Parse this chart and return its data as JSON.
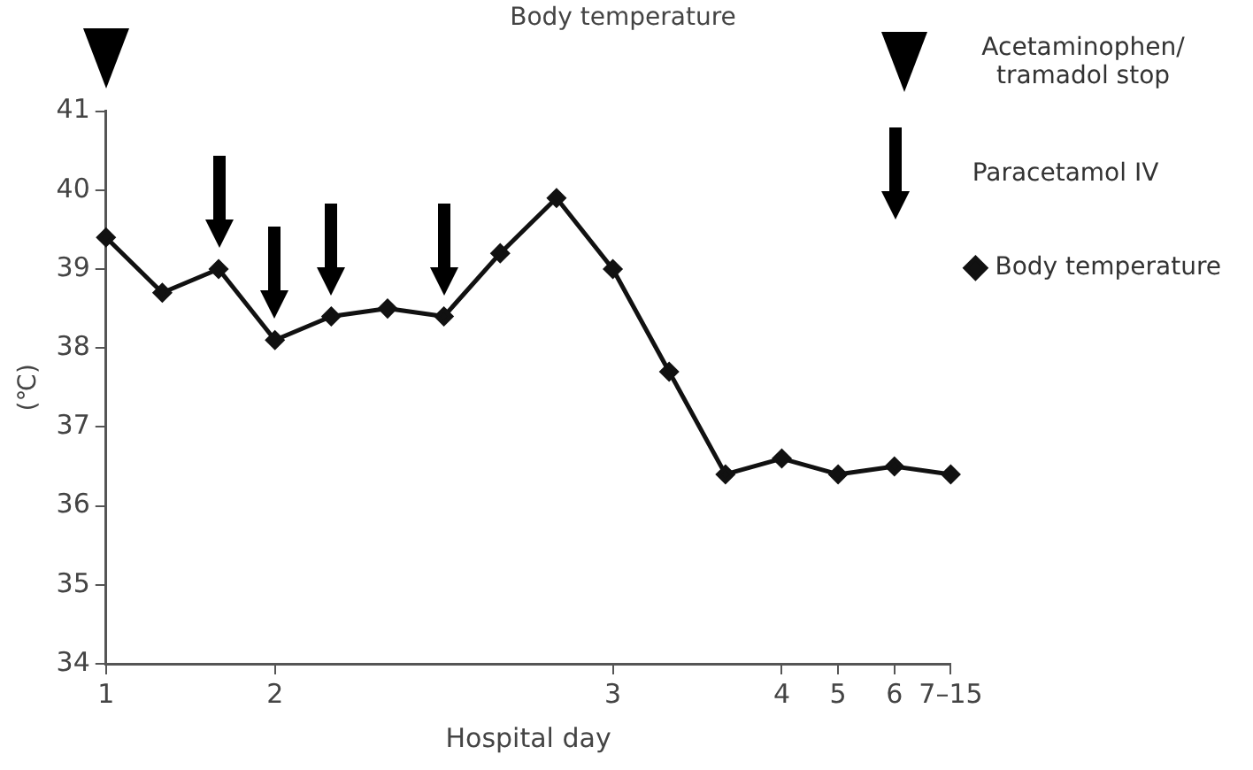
{
  "chart_data": {
    "type": "line",
    "title": "Body temperature",
    "xlabel": "Hospital day",
    "ylabel": "(℃)",
    "categories": [
      "1",
      null,
      null,
      "2",
      null,
      null,
      null,
      null,
      null,
      "3",
      null,
      null,
      "4",
      "5",
      "6",
      "7–15"
    ],
    "series": [
      {
        "name": "Body temperature",
        "color": "#111111",
        "values": [
          39.4,
          38.7,
          39.0,
          38.1,
          38.4,
          38.5,
          38.4,
          39.2,
          39.9,
          39.0,
          37.7,
          36.4,
          36.6,
          36.4,
          36.5,
          36.4
        ]
      }
    ],
    "ylim": [
      34,
      41
    ],
    "yticks": [
      34,
      35,
      36,
      37,
      38,
      39,
      40,
      41
    ],
    "annotations": [
      "Acetaminophen/ tramadol stop",
      "Paracetamol IV"
    ],
    "grid": false,
    "legend": "right",
    "marker": "diamond",
    "line_style": "solid"
  }
}
